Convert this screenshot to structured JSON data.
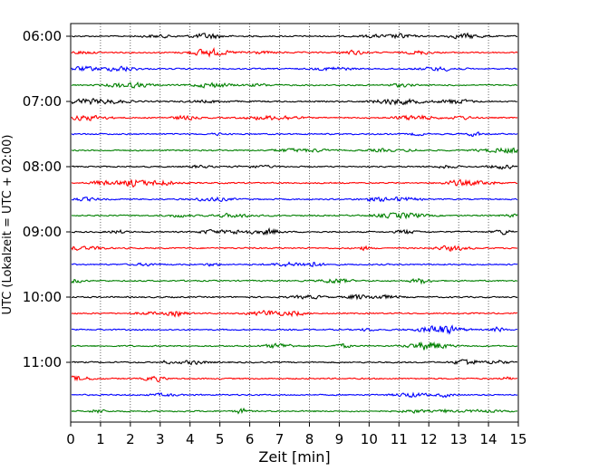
{
  "chart_data": {
    "type": "line",
    "title": "",
    "xlabel": "Zeit  [min]",
    "ylabel": "UTC (Lokalzeit = UTC + 02:00)",
    "xlim": [
      0,
      15
    ],
    "x_ticks": [
      0,
      1,
      2,
      3,
      4,
      5,
      6,
      7,
      8,
      9,
      10,
      11,
      12,
      13,
      14,
      15
    ],
    "x_tick_labels": [
      "0",
      "1",
      "2",
      "3",
      "4",
      "5",
      "6",
      "7",
      "8",
      "9",
      "10",
      "11",
      "12",
      "13",
      "14",
      "15"
    ],
    "y_tick_labels": [
      "06:00",
      "07:00",
      "08:00",
      "09:00",
      "10:00",
      "11:00"
    ],
    "y_tick_rows": [
      0,
      4,
      8,
      12,
      16,
      20
    ],
    "trace_count": 24,
    "trace_interval_min": 15,
    "first_trace": "06:00",
    "trace_colors": [
      "#000000",
      "#ff0000",
      "#0000ff",
      "#008000"
    ],
    "vertical_grid": "dotted",
    "legend": "none"
  }
}
